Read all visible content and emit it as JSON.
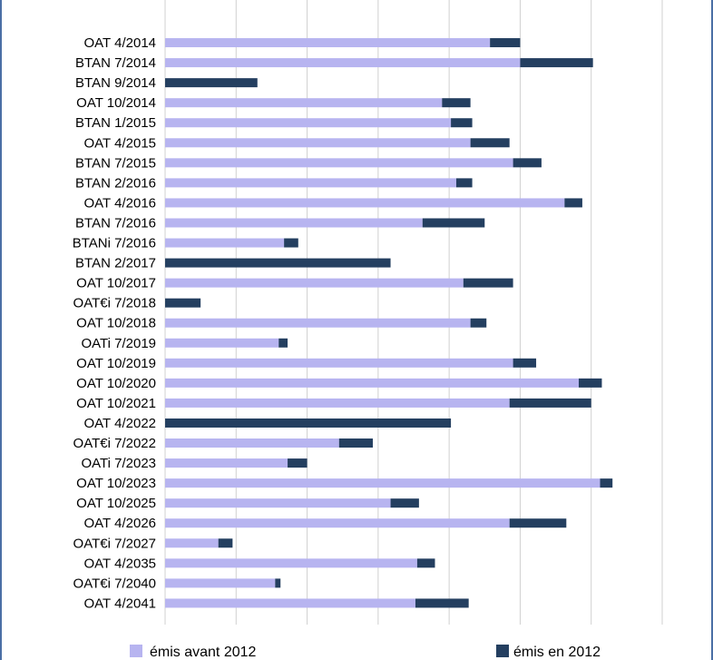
{
  "chart_data": {
    "type": "bar",
    "orientation": "horizontal",
    "stacked": true,
    "categories": [
      "OAT 4/2014",
      "BTAN 7/2014",
      "BTAN 9/2014",
      "OAT 10/2014",
      "BTAN 1/2015",
      "OAT 4/2015",
      "BTAN 7/2015",
      "BTAN 2/2016",
      "OAT 4/2016",
      "BTAN 7/2016",
      "BTANi 7/2016",
      "BTAN 2/2017",
      "OAT 10/2017",
      "OAT€i 7/2018",
      "OAT 10/2018",
      "OATi 7/2019",
      "OAT 10/2019",
      "OAT 10/2020",
      "OAT 10/2021",
      "OAT 4/2022",
      "OAT€i 7/2022",
      "OATi 7/2023",
      "OAT 10/2023",
      "OAT 10/2025",
      "OAT 4/2026",
      "OAT€i 7/2027",
      "OAT 4/2035",
      "OAT€i 7/2040",
      "OAT 4/2041"
    ],
    "series": [
      {
        "name": "émis avant 2012",
        "color": "#b7b4f0",
        "values": [
          18.3,
          20.0,
          0,
          15.6,
          16.1,
          17.2,
          19.6,
          16.4,
          22.5,
          14.5,
          6.7,
          0,
          16.8,
          0,
          17.2,
          6.4,
          19.6,
          23.3,
          19.4,
          0,
          9.8,
          6.9,
          24.5,
          12.7,
          19.4,
          3.0,
          14.2,
          6.2,
          14.1
        ]
      },
      {
        "name": "émis en 2012",
        "color": "#243f60",
        "values": [
          1.7,
          4.1,
          5.2,
          1.6,
          1.2,
          2.2,
          1.6,
          0.9,
          1.0,
          3.5,
          0.8,
          12.7,
          2.8,
          2.0,
          0.9,
          0.5,
          1.3,
          1.3,
          4.6,
          16.1,
          1.9,
          1.1,
          0.7,
          1.6,
          3.2,
          0.8,
          1.0,
          0.3,
          3.0
        ]
      }
    ],
    "xlim": [
      0,
      28
    ],
    "x_gridlines": [
      0,
      4,
      8,
      12,
      16,
      20,
      24,
      28
    ],
    "grid": true,
    "legend": "bottom"
  }
}
